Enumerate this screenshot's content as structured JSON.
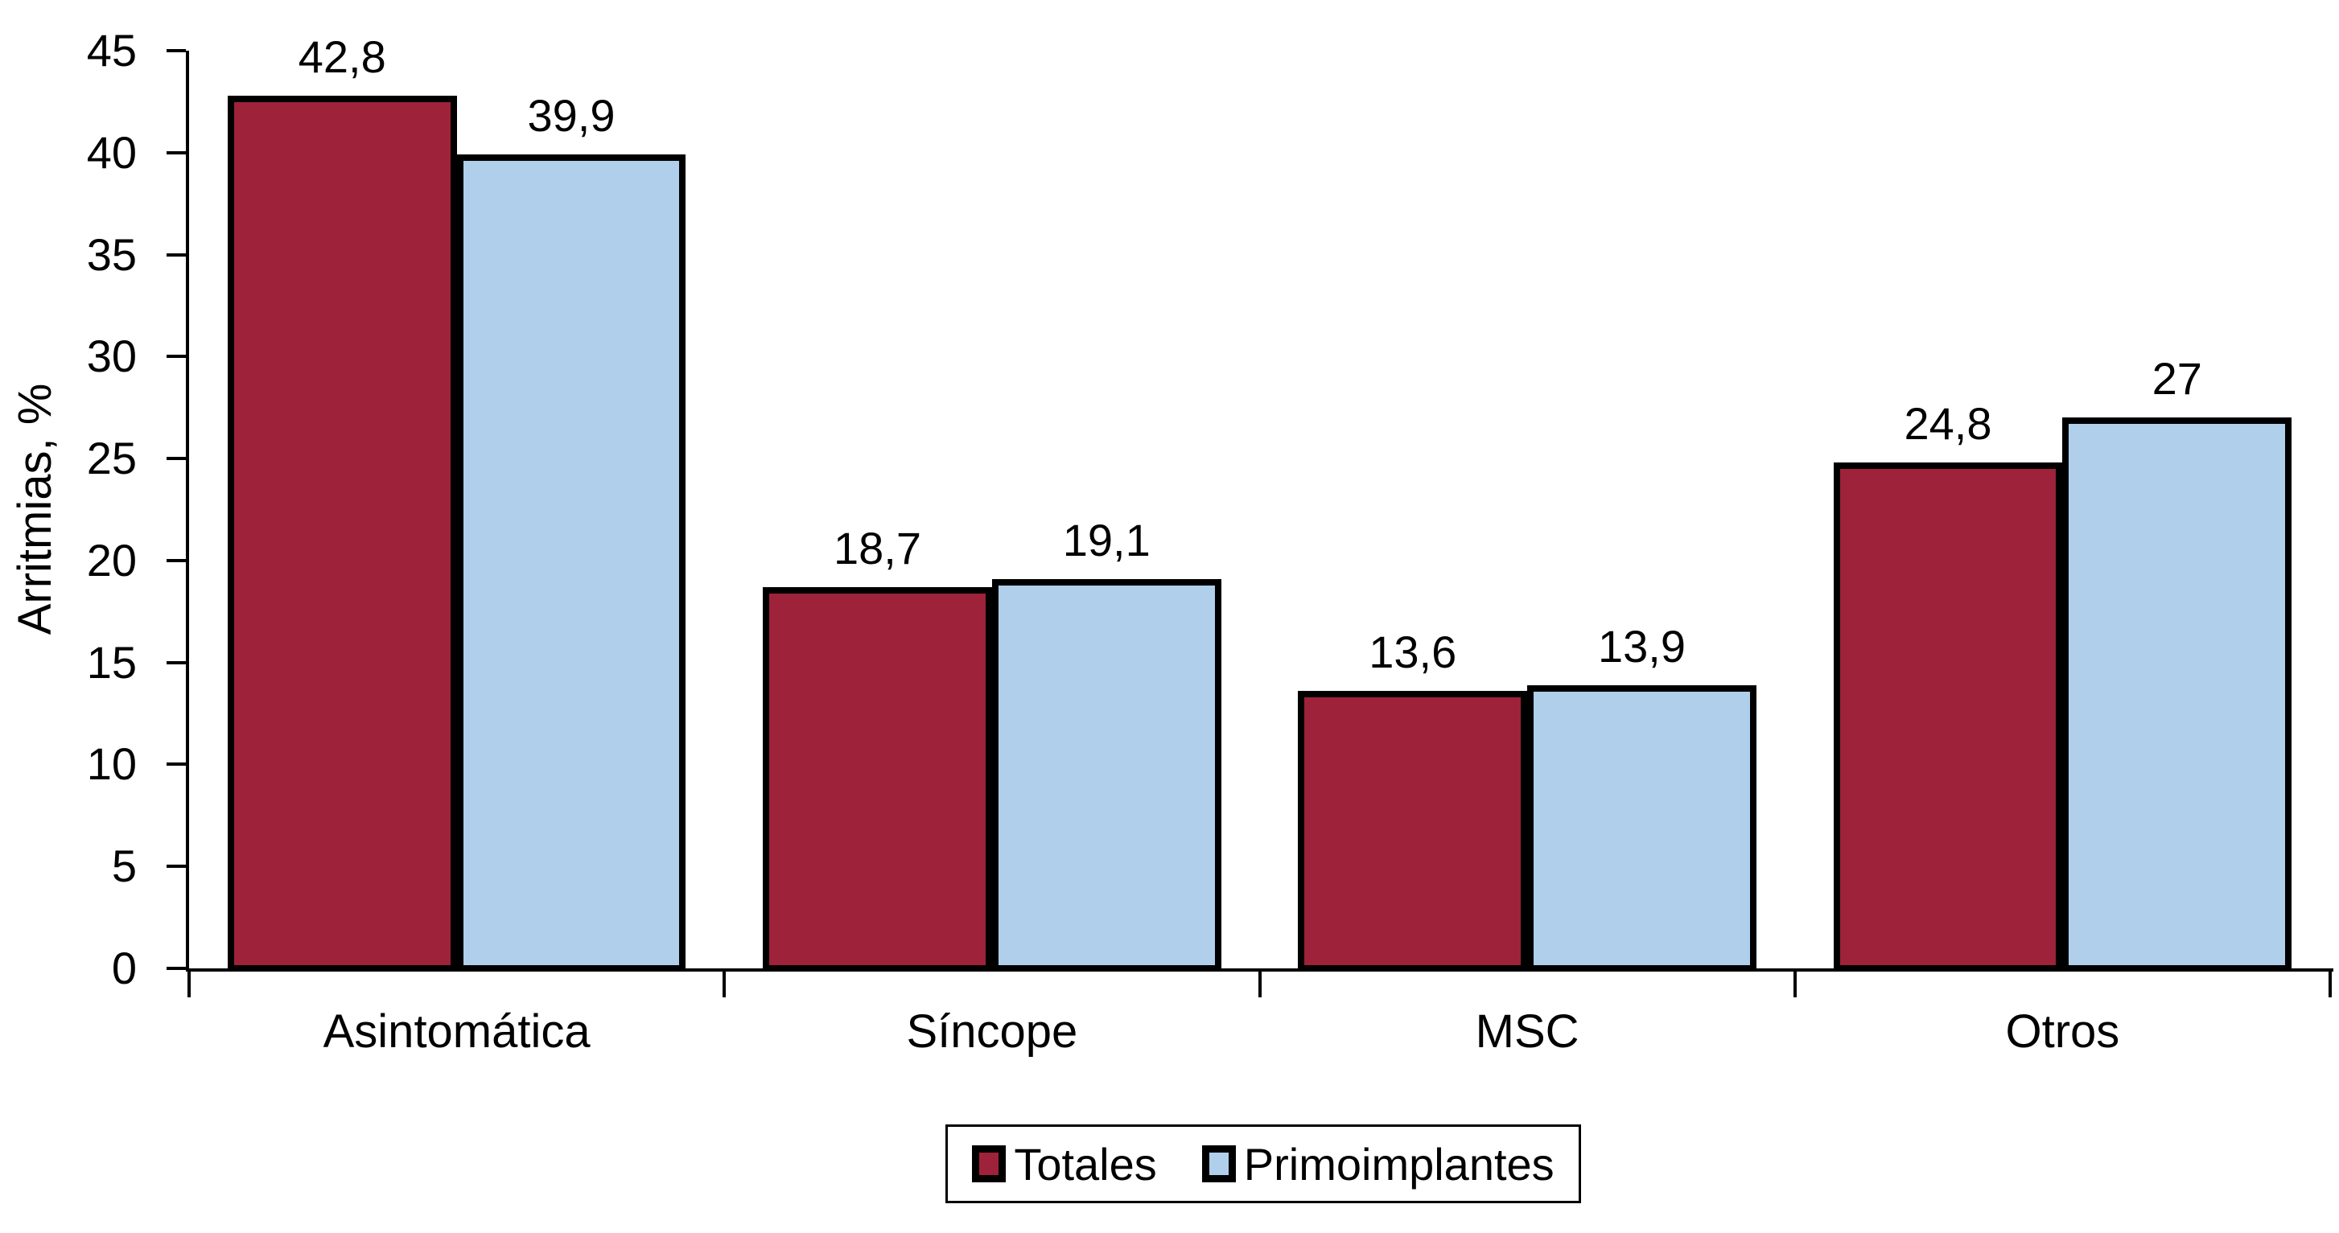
{
  "chart_data": {
    "type": "bar",
    "title": "",
    "ylabel": "Arritmias, %",
    "xlabel": "",
    "categories": [
      "Asintomática",
      "Síncope",
      "MSC",
      "Otros"
    ],
    "series": [
      {
        "name": "Totales",
        "color": "#9E2239",
        "border_color": "#000000",
        "values": [
          42.8,
          18.7,
          13.6,
          24.8
        ],
        "value_labels": [
          "42,8",
          "18,7",
          "13,6",
          "24,8"
        ]
      },
      {
        "name": "Primoimplantes",
        "color": "#AFCFEB",
        "border_color": "#000000",
        "values": [
          39.9,
          19.1,
          13.9,
          27
        ],
        "value_labels": [
          "39,9",
          "19,1",
          "13,9",
          "27"
        ]
      }
    ],
    "ylim": [
      0,
      45
    ],
    "ytick_step": 5,
    "ytick_labels": [
      "0",
      "5",
      "10",
      "15",
      "20",
      "25",
      "30",
      "35",
      "40",
      "45"
    ],
    "grid": false,
    "legend_position": "bottom-center",
    "background_color": "#FFFFFF",
    "axis_color": "#000000"
  }
}
